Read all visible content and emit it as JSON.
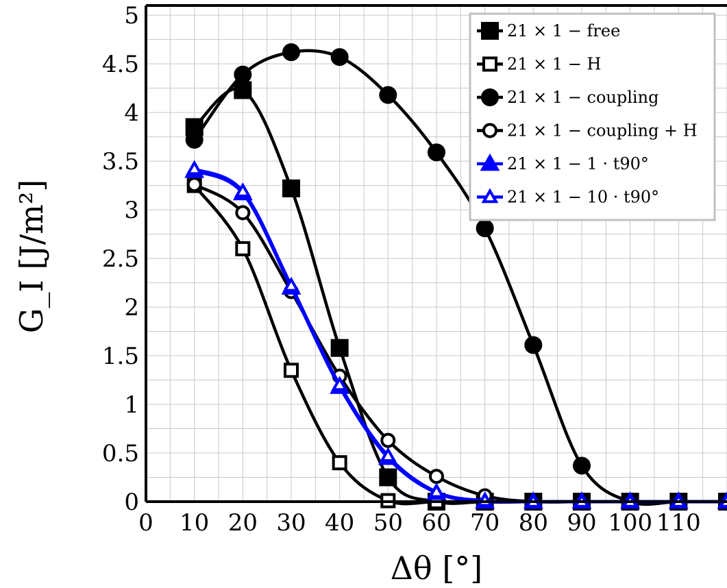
{
  "chart_data": {
    "type": "line",
    "xlabel": "Δθ [°]",
    "ylabel": "G_I [J/m²]",
    "xlim": [
      0,
      120
    ],
    "ylim": [
      0,
      5.1
    ],
    "xticks": [
      0,
      10,
      20,
      30,
      40,
      50,
      60,
      70,
      80,
      90,
      100,
      110
    ],
    "yticks": [
      0,
      0.5,
      1,
      1.5,
      2,
      2.5,
      3,
      3.5,
      4,
      4.5,
      5
    ],
    "grid": true,
    "legend_position": "top-right",
    "x": [
      10,
      20,
      30,
      40,
      50,
      60,
      70,
      80,
      90,
      100,
      110,
      120
    ],
    "series": [
      {
        "name": "21 × 1 − free",
        "marker": "square-filled",
        "color": "#000000",
        "values": [
          3.85,
          4.23,
          3.22,
          1.58,
          0.25,
          0.0,
          0.0,
          0.0,
          0.0,
          0.0,
          0.0,
          0.0
        ]
      },
      {
        "name": "21 × 1 − H",
        "marker": "square-open",
        "color": "#000000",
        "values": [
          3.25,
          2.6,
          1.35,
          0.4,
          0.01,
          0.0,
          0.0,
          0.0,
          0.0,
          0.0,
          0.0,
          0.0
        ]
      },
      {
        "name": "21 × 1 − coupling",
        "marker": "circle-filled",
        "color": "#000000",
        "values": [
          3.72,
          4.39,
          4.62,
          4.57,
          4.18,
          3.59,
          2.81,
          1.61,
          0.37,
          0.0,
          0.0,
          0.0
        ]
      },
      {
        "name": "21 × 1 − coupling + H",
        "marker": "circle-open",
        "color": "#000000",
        "values": [
          3.26,
          2.97,
          2.16,
          1.29,
          0.63,
          0.26,
          0.06,
          0.0,
          0.0,
          0.0,
          0.0,
          0.0
        ]
      },
      {
        "name": "21 × 1 − 1 · t90°",
        "marker": "triangle-filled",
        "color": "#0000ff",
        "values": [
          3.4,
          3.17,
          2.2,
          1.18,
          0.45,
          0.09,
          0.0,
          0.0,
          0.0,
          0.0,
          0.0,
          0.0
        ]
      },
      {
        "name": "21 × 1 − 10 · t90°",
        "marker": "triangle-open",
        "color": "#0000ff",
        "values": [
          3.42,
          3.19,
          2.22,
          1.2,
          0.47,
          0.1,
          0.01,
          0.0,
          0.0,
          0.0,
          0.0,
          0.0
        ]
      }
    ]
  }
}
